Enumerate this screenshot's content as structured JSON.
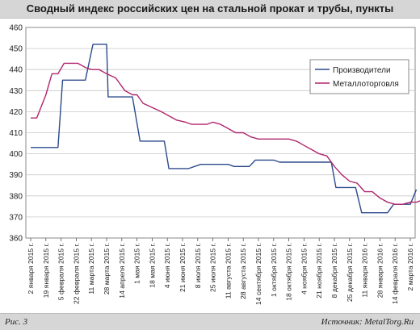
{
  "header": {
    "title": "Сводный индекс российских цен на стальной прокат и трубы, пункты"
  },
  "footer": {
    "left": "Рис. 3",
    "right": "Источник: MetalTorg.Ru"
  },
  "colors": {
    "producers": "#2b4a8b",
    "metal_trade": "#b0256e",
    "grid": "#c8c8c8",
    "axis": "#555555"
  },
  "chart_data": {
    "type": "line",
    "title": "Сводный индекс российских цен на стальной прокат и трубы, пункты",
    "ylim": [
      360,
      460
    ],
    "yticks": [
      360,
      370,
      380,
      390,
      400,
      410,
      420,
      430,
      440,
      450,
      460
    ],
    "grid": true,
    "legend_position": "top-right",
    "x": [
      "2 января 2015 г.",
      "19 января 2015 г.",
      "5 февраля 2015 г.",
      "22 февраля 2015 г.",
      "11 марта 2015 г.",
      "28 марта 2015 г.",
      "14 апреля 2015 г.",
      "1 мая 2015 г.",
      "18 мая 2015 г.",
      "4 июня 2015 г.",
      "21 июня 2015 г.",
      "8 июля 2015 г.",
      "25 июля 2015 г.",
      "11 августа 2015 г.",
      "28 августа 2015 г.",
      "14 сентября 2015 г.",
      "1 октября 2015 г.",
      "18 октября 2015 г.",
      "4 ноября 2015 г.",
      "21 ноября 2015 г.",
      "8 декабря 2015 г.",
      "25 декабря 2015 г.",
      "11 января 2016 г.",
      "28 января 2016 г.",
      "14 февраля 2016 г.",
      "2 марта 2016 г."
    ],
    "series": [
      {
        "name": "Производители",
        "points": [
          [
            0,
            403
          ],
          [
            1.8,
            403
          ],
          [
            2.1,
            435
          ],
          [
            3.6,
            435
          ],
          [
            4.1,
            452
          ],
          [
            5.0,
            452
          ],
          [
            5.1,
            427
          ],
          [
            6.7,
            427
          ],
          [
            7.2,
            406
          ],
          [
            8.8,
            406
          ],
          [
            9.1,
            393
          ],
          [
            10.4,
            393
          ],
          [
            11.2,
            395
          ],
          [
            13.0,
            395
          ],
          [
            13.4,
            394
          ],
          [
            14.4,
            394
          ],
          [
            14.8,
            397
          ],
          [
            16.0,
            397
          ],
          [
            16.4,
            396
          ],
          [
            19.8,
            396
          ],
          [
            20.1,
            384
          ],
          [
            21.4,
            384
          ],
          [
            21.8,
            372
          ],
          [
            23.5,
            372
          ],
          [
            23.9,
            376
          ],
          [
            25.0,
            376
          ],
          [
            25.4,
            383
          ]
        ]
      },
      {
        "name": "Металлоторговля",
        "points": [
          [
            0,
            417
          ],
          [
            0.4,
            417
          ],
          [
            1.0,
            428
          ],
          [
            1.4,
            438
          ],
          [
            1.8,
            438
          ],
          [
            2.2,
            443
          ],
          [
            2.7,
            443
          ],
          [
            3.1,
            443
          ],
          [
            3.6,
            441
          ],
          [
            4.0,
            440
          ],
          [
            4.5,
            440
          ],
          [
            5.0,
            438
          ],
          [
            5.6,
            436
          ],
          [
            6.2,
            430
          ],
          [
            6.7,
            428
          ],
          [
            7.0,
            428
          ],
          [
            7.4,
            424
          ],
          [
            8.0,
            422
          ],
          [
            8.6,
            420
          ],
          [
            9.1,
            418
          ],
          [
            9.6,
            416
          ],
          [
            10.2,
            415
          ],
          [
            10.6,
            414
          ],
          [
            11.1,
            414
          ],
          [
            11.6,
            414
          ],
          [
            12.0,
            415
          ],
          [
            12.5,
            414
          ],
          [
            13.0,
            412
          ],
          [
            13.5,
            410
          ],
          [
            14.0,
            410
          ],
          [
            14.5,
            408
          ],
          [
            15.0,
            407
          ],
          [
            15.6,
            407
          ],
          [
            16.0,
            407
          ],
          [
            16.5,
            407
          ],
          [
            17.0,
            407
          ],
          [
            17.5,
            406
          ],
          [
            18.0,
            404
          ],
          [
            18.5,
            402
          ],
          [
            19.0,
            400
          ],
          [
            19.5,
            399
          ],
          [
            20.0,
            394
          ],
          [
            20.5,
            390
          ],
          [
            21.0,
            387
          ],
          [
            21.5,
            386
          ],
          [
            22.0,
            382
          ],
          [
            22.5,
            382
          ],
          [
            23.0,
            379
          ],
          [
            23.5,
            377
          ],
          [
            24.0,
            376
          ],
          [
            24.5,
            376
          ],
          [
            25.0,
            377
          ],
          [
            25.4,
            377
          ],
          [
            25.8,
            378
          ]
        ]
      }
    ]
  }
}
